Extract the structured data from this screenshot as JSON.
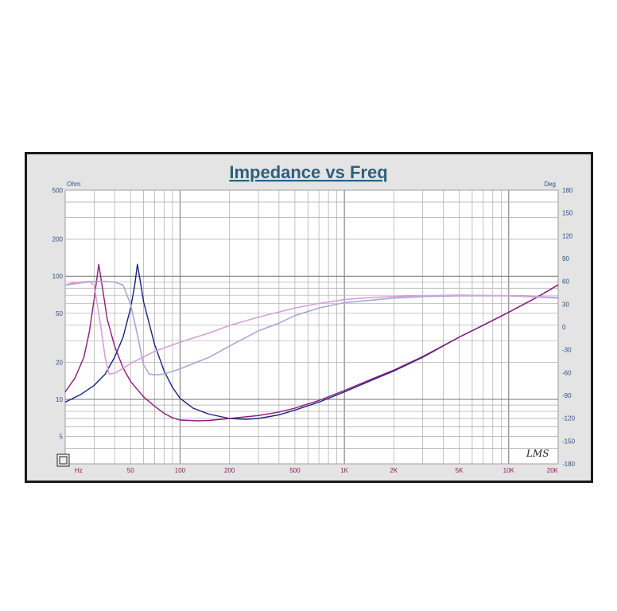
{
  "chart_data": {
    "type": "line",
    "title": "Impedance vs Freq",
    "left_axis_unit": "Ohm",
    "right_axis_unit": "Deg",
    "x_unit": "Hz",
    "x_scale": "log",
    "y_scale": "log",
    "xlim": [
      20,
      20000
    ],
    "ylim": [
      3,
      500
    ],
    "y2lim": [
      -180,
      180
    ],
    "grid": true,
    "x_ticks": [
      {
        "v": 20,
        "label": "Hz"
      },
      {
        "v": 50,
        "label": "50"
      },
      {
        "v": 100,
        "label": "100"
      },
      {
        "v": 200,
        "label": "200"
      },
      {
        "v": 500,
        "label": "500"
      },
      {
        "v": 1000,
        "label": "1K"
      },
      {
        "v": 2000,
        "label": "2K"
      },
      {
        "v": 5000,
        "label": "5K"
      },
      {
        "v": 10000,
        "label": "10K"
      },
      {
        "v": 20000,
        "label": "20K"
      }
    ],
    "y_ticks": [
      {
        "v": 500,
        "label": "500"
      },
      {
        "v": 200,
        "label": "200"
      },
      {
        "v": 100,
        "label": "100"
      },
      {
        "v": 50,
        "label": "50"
      },
      {
        "v": 20,
        "label": "20"
      },
      {
        "v": 10,
        "label": "10"
      },
      {
        "v": 5,
        "label": "5"
      }
    ],
    "y2_ticks": [
      {
        "v": 180,
        "label": "180"
      },
      {
        "v": 150,
        "label": "150"
      },
      {
        "v": 120,
        "label": "120"
      },
      {
        "v": 90,
        "label": "90"
      },
      {
        "v": 60,
        "label": "60"
      },
      {
        "v": 30,
        "label": "30"
      },
      {
        "v": 0,
        "label": "0"
      },
      {
        "v": -30,
        "label": "-30"
      },
      {
        "v": -60,
        "label": "-60"
      },
      {
        "v": -90,
        "label": "-90"
      },
      {
        "v": -120,
        "label": "-120"
      },
      {
        "v": -150,
        "label": "-150"
      },
      {
        "v": -180,
        "label": "-180"
      }
    ],
    "series": [
      {
        "axis": "left",
        "color": "#1a237e",
        "points": [
          [
            20,
            9.5
          ],
          [
            25,
            11
          ],
          [
            30,
            13
          ],
          [
            35,
            16
          ],
          [
            40,
            22
          ],
          [
            45,
            32
          ],
          [
            50,
            55
          ],
          [
            53,
            85
          ],
          [
            55,
            125
          ],
          [
            57,
            95
          ],
          [
            60,
            62
          ],
          [
            70,
            28
          ],
          [
            80,
            17
          ],
          [
            90,
            12.5
          ],
          [
            100,
            10.2
          ],
          [
            120,
            8.5
          ],
          [
            150,
            7.6
          ],
          [
            200,
            7.0
          ],
          [
            250,
            6.9
          ],
          [
            300,
            7.0
          ],
          [
            400,
            7.5
          ],
          [
            500,
            8.2
          ],
          [
            700,
            9.5
          ],
          [
            1000,
            11.5
          ],
          [
            1500,
            14.5
          ],
          [
            2000,
            17
          ],
          [
            3000,
            22
          ],
          [
            5000,
            32
          ],
          [
            7000,
            40
          ],
          [
            10000,
            51
          ],
          [
            15000,
            68
          ],
          [
            20000,
            85
          ]
        ]
      },
      {
        "axis": "left",
        "color": "#8e1a7a",
        "points": [
          [
            20,
            11.5
          ],
          [
            23,
            15
          ],
          [
            26,
            22
          ],
          [
            28,
            35
          ],
          [
            30,
            65
          ],
          [
            32,
            125
          ],
          [
            34,
            75
          ],
          [
            36,
            45
          ],
          [
            40,
            27
          ],
          [
            45,
            18
          ],
          [
            50,
            14
          ],
          [
            60,
            10.5
          ],
          [
            70,
            8.8
          ],
          [
            80,
            7.7
          ],
          [
            90,
            7.1
          ],
          [
            100,
            6.8
          ],
          [
            130,
            6.7
          ],
          [
            150,
            6.75
          ],
          [
            200,
            7.0
          ],
          [
            300,
            7.4
          ],
          [
            400,
            7.9
          ],
          [
            500,
            8.5
          ],
          [
            700,
            9.8
          ],
          [
            1000,
            11.8
          ],
          [
            1500,
            14.8
          ],
          [
            2000,
            17.3
          ],
          [
            3000,
            22.3
          ],
          [
            5000,
            32
          ],
          [
            7000,
            40
          ],
          [
            10000,
            51
          ],
          [
            15000,
            68
          ],
          [
            20000,
            85
          ]
        ]
      },
      {
        "axis": "right",
        "color": "#a8a8d8",
        "points": [
          [
            20,
            55
          ],
          [
            25,
            58
          ],
          [
            30,
            60
          ],
          [
            35,
            60
          ],
          [
            40,
            59
          ],
          [
            45,
            55
          ],
          [
            50,
            30
          ],
          [
            55,
            -10
          ],
          [
            60,
            -50
          ],
          [
            65,
            -62
          ],
          [
            70,
            -63
          ],
          [
            80,
            -62
          ],
          [
            100,
            -55
          ],
          [
            150,
            -40
          ],
          [
            200,
            -25
          ],
          [
            300,
            -5
          ],
          [
            400,
            5
          ],
          [
            500,
            15
          ],
          [
            700,
            25
          ],
          [
            1000,
            32
          ],
          [
            2000,
            38
          ],
          [
            3000,
            40
          ],
          [
            5000,
            41
          ],
          [
            10000,
            41
          ],
          [
            20000,
            39
          ]
        ]
      },
      {
        "axis": "right",
        "color": "#d8a0d8",
        "points": [
          [
            20,
            55
          ],
          [
            22,
            58
          ],
          [
            25,
            59
          ],
          [
            28,
            60
          ],
          [
            30,
            55
          ],
          [
            33,
            0
          ],
          [
            35,
            -40
          ],
          [
            37,
            -62
          ],
          [
            40,
            -61
          ],
          [
            50,
            -48
          ],
          [
            70,
            -32
          ],
          [
            100,
            -20
          ],
          [
            150,
            -8
          ],
          [
            200,
            2
          ],
          [
            300,
            13
          ],
          [
            500,
            25
          ],
          [
            700,
            31
          ],
          [
            1000,
            36
          ],
          [
            1500,
            39
          ],
          [
            2000,
            40
          ],
          [
            3000,
            41
          ],
          [
            5000,
            42
          ],
          [
            10000,
            41
          ],
          [
            20000,
            38
          ]
        ]
      }
    ],
    "logo": "LMS"
  }
}
